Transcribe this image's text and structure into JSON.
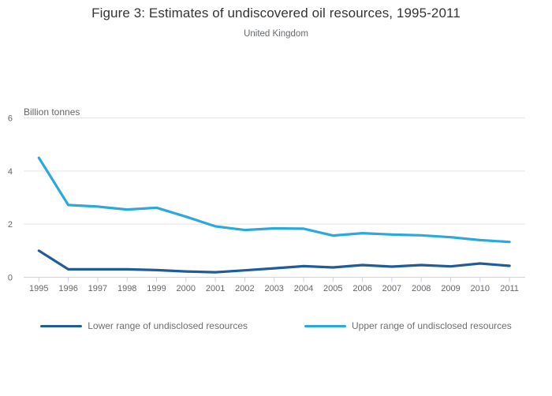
{
  "chart_data": {
    "type": "line",
    "title": "Figure 3: Estimates of undiscovered oil resources, 1995-2011",
    "subtitle": "United Kingdom",
    "ylabel": "Billion tonnes",
    "xlabel": "",
    "x": [
      1995,
      1996,
      1997,
      1998,
      1999,
      2000,
      2001,
      2002,
      2003,
      2004,
      2005,
      2006,
      2007,
      2008,
      2009,
      2010,
      2011
    ],
    "yticks": [
      0,
      2,
      4,
      6
    ],
    "ylim": [
      0,
      6
    ],
    "grid": true,
    "legend_position": "bottom",
    "series": [
      {
        "name": "Lower range of undisclosed resources",
        "color": "#1f5c99",
        "values": [
          1.0,
          0.3,
          0.3,
          0.3,
          0.27,
          0.22,
          0.19,
          0.26,
          0.34,
          0.42,
          0.37,
          0.46,
          0.4,
          0.46,
          0.41,
          0.52,
          0.43
        ]
      },
      {
        "name": "Upper range of undisclosed resources",
        "color": "#2ca9dc",
        "values": [
          4.5,
          2.72,
          2.66,
          2.55,
          2.62,
          2.28,
          1.92,
          1.78,
          1.84,
          1.83,
          1.57,
          1.66,
          1.61,
          1.58,
          1.51,
          1.4,
          1.33
        ]
      }
    ],
    "colors": {
      "grid": "#e4e4e4",
      "axis": "#ccd3e8",
      "tick_label": "#666666",
      "axis_title": "#666666"
    }
  }
}
